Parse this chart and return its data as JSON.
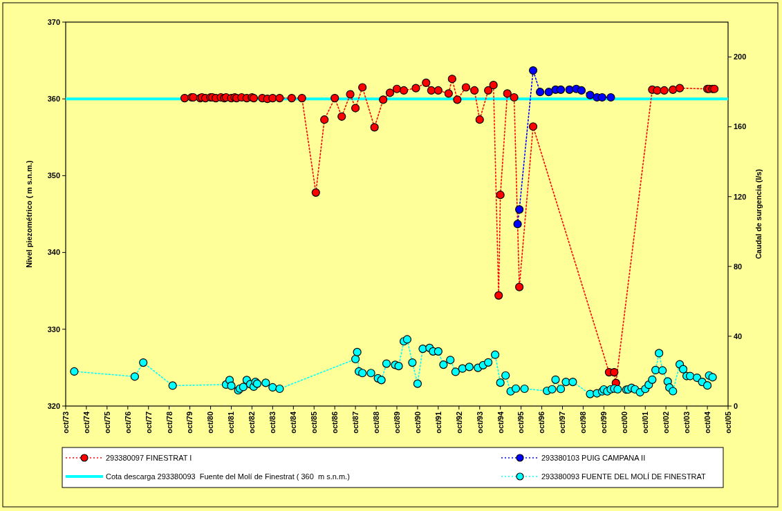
{
  "chart_data": {
    "type": "line",
    "xlabel": null,
    "ylabel": "Nivel piezométrico ( m s.n.m.)",
    "y2label": "Caudal de surgencia (l/s)",
    "xlim": [
      "1973-10",
      "2005-10"
    ],
    "xticks": [
      {
        "value": "1973-10",
        "label": "oct/73"
      },
      {
        "value": "1974-10",
        "label": "oct/74"
      },
      {
        "value": "1975-10",
        "label": "oct/75"
      },
      {
        "value": "1976-10",
        "label": "oct/76"
      },
      {
        "value": "1977-10",
        "label": "oct/77"
      },
      {
        "value": "1978-10",
        "label": "oct/78"
      },
      {
        "value": "1979-10",
        "label": "oct/79"
      },
      {
        "value": "1980-10",
        "label": "oct/80"
      },
      {
        "value": "1981-10",
        "label": "oct/81"
      },
      {
        "value": "1982-10",
        "label": "oct/82"
      },
      {
        "value": "1983-10",
        "label": "oct/83"
      },
      {
        "value": "1984-10",
        "label": "oct/84"
      },
      {
        "value": "1985-10",
        "label": "oct/85"
      },
      {
        "value": "1986-10",
        "label": "oct/86"
      },
      {
        "value": "1987-10",
        "label": "oct/87"
      },
      {
        "value": "1988-10",
        "label": "oct/88"
      },
      {
        "value": "1989-10",
        "label": "oct/89"
      },
      {
        "value": "1990-10",
        "label": "oct/90"
      },
      {
        "value": "1991-10",
        "label": "oct/91"
      },
      {
        "value": "1992-10",
        "label": "oct/92"
      },
      {
        "value": "1993-10",
        "label": "oct/93"
      },
      {
        "value": "1994-10",
        "label": "oct/94"
      },
      {
        "value": "1995-10",
        "label": "oct/95"
      },
      {
        "value": "1996-10",
        "label": "oct/96"
      },
      {
        "value": "1997-10",
        "label": "oct/97"
      },
      {
        "value": "1998-10",
        "label": "oct/98"
      },
      {
        "value": "1999-10",
        "label": "oct/99"
      },
      {
        "value": "2000-10",
        "label": "oct/00"
      },
      {
        "value": "2001-10",
        "label": "oct/01"
      },
      {
        "value": "2002-10",
        "label": "oct/02"
      },
      {
        "value": "2003-10",
        "label": "oct/03"
      },
      {
        "value": "2004-10",
        "label": "oct/04"
      },
      {
        "value": "2005-10",
        "label": "oct/05"
      }
    ],
    "ylim": [
      320,
      370
    ],
    "yticks": [
      320,
      330,
      340,
      350,
      360,
      370
    ],
    "y2lim": [
      0,
      220
    ],
    "y2ticks": [
      0,
      40,
      80,
      120,
      160,
      200
    ],
    "marker": "circle",
    "line_style": "dotted",
    "grid": false,
    "legend": "bottom",
    "ref_lines": [
      {
        "axis": "y",
        "value": 360,
        "label": "Cota descarga 293380093  Fuente del Molí de Finestrat ( 360  m s.n.m.)",
        "color": "#00ffff",
        "line_style": "solid"
      }
    ],
    "series": [
      {
        "name": "293380097 FINESTRAT I",
        "color": "#ff0000",
        "x": [
          "1979-07",
          "1979-11",
          "1979-12",
          "1980-04",
          "1980-05",
          "1980-07",
          "1980-10",
          "1980-11",
          "1981-01",
          "1981-04",
          "1981-06",
          "1981-07",
          "1981-10",
          "1981-12",
          "1982-01",
          "1982-04",
          "1982-07",
          "1982-10",
          "1982-11",
          "1983-04",
          "1983-07",
          "1983-10",
          "1984-02",
          "1984-09",
          "1985-03",
          "1985-11",
          "1986-04",
          "1986-10",
          "1987-02",
          "1987-07",
          "1987-10",
          "1988-02",
          "1988-09",
          "1989-02",
          "1989-06",
          "1989-10",
          "1990-02",
          "1990-09",
          "1991-03",
          "1991-06",
          "1991-10",
          "1992-04",
          "1992-06",
          "1992-09",
          "1993-02",
          "1993-07",
          "1993-10",
          "1994-03",
          "1994-06",
          "1994-09",
          "1994-10",
          "1995-02",
          "1995-06",
          "1995-09",
          "1996-05",
          "2000-01",
          "2000-04",
          "2000-05",
          "2002-02",
          "2002-05",
          "2002-09",
          "2003-02",
          "2003-06",
          "2004-10",
          "2004-11",
          "2005-01",
          "2005-02"
        ],
        "values": [
          360.1,
          360.2,
          360.2,
          360.1,
          360.2,
          360.1,
          360.2,
          360.2,
          360.1,
          360.2,
          360.1,
          360.2,
          360.1,
          360.2,
          360.1,
          360.2,
          360.1,
          360.2,
          360.1,
          360.1,
          360.0,
          360.1,
          360.1,
          360.1,
          360.1,
          347.8,
          357.3,
          360.1,
          357.7,
          360.6,
          358.8,
          361.5,
          356.3,
          359.9,
          360.8,
          361.3,
          361.1,
          361.4,
          362.1,
          361.1,
          361.1,
          360.7,
          362.6,
          359.9,
          361.5,
          361.1,
          357.3,
          361.1,
          361.8,
          334.4,
          347.5,
          360.7,
          360.2,
          335.5,
          356.4,
          324.4,
          324.4,
          323.0,
          361.2,
          361.1,
          361.1,
          361.2,
          361.4,
          361.3,
          361.3,
          361.3,
          361.3
        ]
      },
      {
        "name": "293380103 PUIG CAMPANA II",
        "color": "#0000ff",
        "x": [
          "1995-08",
          "1995-09",
          "1996-05",
          "1996-09",
          "1997-02",
          "1997-06",
          "1997-09",
          "1998-02",
          "1998-06",
          "1998-09",
          "1999-02",
          "1999-06",
          "1999-09",
          "2000-02"
        ],
        "values": [
          343.7,
          345.6,
          363.7,
          360.9,
          360.9,
          361.2,
          361.2,
          361.2,
          361.3,
          361.1,
          360.5,
          360.2,
          360.2,
          360.2
        ]
      },
      {
        "name": "293380093 FUENTE DEL MOLÍ DE FINESTRAT",
        "color": "#00ffff",
        "axis": "y2",
        "x": [
          "1974-03",
          "1977-02",
          "1977-07",
          "1978-12",
          "1981-07",
          "1981-09",
          "1981-10",
          "1982-02",
          "1982-03",
          "1982-05",
          "1982-07",
          "1982-09",
          "1982-11",
          "1982-12",
          "1983-01",
          "1983-06",
          "1983-10",
          "1984-02",
          "1987-10",
          "1987-11",
          "1987-12",
          "1988-02",
          "1988-07",
          "1988-11",
          "1989-01",
          "1989-04",
          "1989-09",
          "1989-11",
          "1990-02",
          "1990-04",
          "1990-07",
          "1990-10",
          "1991-01",
          "1991-05",
          "1991-07",
          "1991-10",
          "1992-01",
          "1992-05",
          "1992-08",
          "1992-12",
          "1993-04",
          "1993-09",
          "1993-12",
          "1994-03",
          "1994-07",
          "1994-10",
          "1995-01",
          "1995-04",
          "1995-07",
          "1995-12",
          "1997-01",
          "1997-04",
          "1997-06",
          "1997-09",
          "1997-12",
          "1998-04",
          "1999-02",
          "1999-06",
          "1999-09",
          "1999-10",
          "1999-12",
          "2000-02",
          "2000-04",
          "2000-06",
          "2000-11",
          "2000-12",
          "2001-02",
          "2001-04",
          "2001-07",
          "2001-10",
          "2001-12",
          "2002-02",
          "2002-04",
          "2002-06",
          "2002-08",
          "2002-11",
          "2002-12",
          "2003-02",
          "2003-06",
          "2003-08",
          "2003-10",
          "2003-12",
          "2004-04",
          "2004-07",
          "2004-10",
          "2004-11",
          "2005-01"
        ],
        "values": [
          19.8,
          16.9,
          24.9,
          11.7,
          12.3,
          14.9,
          11.6,
          9.0,
          10.0,
          10.9,
          14.9,
          12.5,
          11.1,
          13.8,
          12.8,
          13.3,
          10.7,
          9.9,
          26.9,
          30.9,
          19.8,
          18.9,
          18.9,
          15.9,
          14.9,
          24.3,
          23.6,
          22.9,
          37.1,
          38.2,
          24.9,
          12.8,
          32.8,
          33.3,
          31.3,
          31.3,
          23.7,
          26.4,
          19.6,
          21.5,
          22.4,
          21.9,
          23.4,
          25.0,
          29.4,
          13.4,
          17.5,
          8.4,
          10.0,
          9.9,
          8.7,
          9.6,
          15.1,
          9.8,
          13.8,
          13.8,
          6.9,
          7.3,
          8.4,
          9.5,
          8.4,
          9.6,
          10.0,
          9.6,
          9.4,
          9.5,
          10.4,
          9.6,
          7.9,
          9.8,
          12.2,
          15.1,
          20.6,
          30.3,
          20.4,
          14.1,
          10.6,
          8.5,
          23.9,
          21.1,
          17.2,
          17.2,
          16.2,
          13.8,
          11.8,
          17.5,
          16.5
        ]
      }
    ]
  }
}
